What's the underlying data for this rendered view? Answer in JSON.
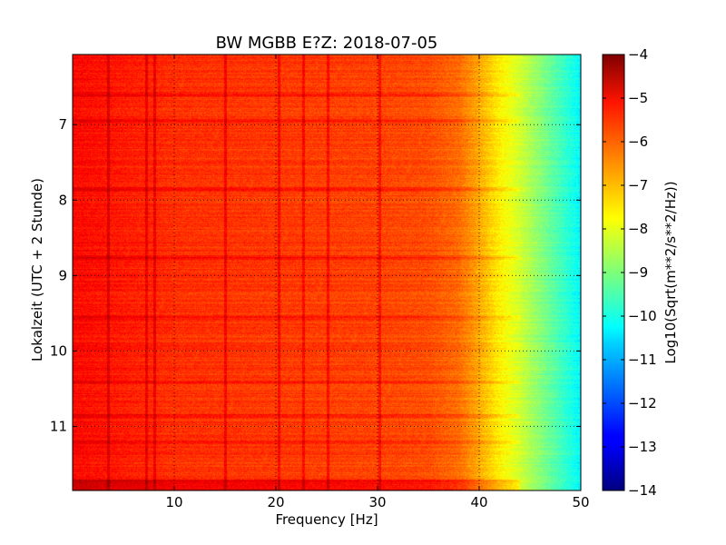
{
  "chart_data": {
    "type": "heatmap",
    "title": "BW MGBB E?Z: 2018-07-05",
    "xlabel": "Frequency [Hz]",
    "ylabel": "Lokalzeit (UTC + 2 Stunde)",
    "colorbar_label": "Log10(Sqrt(m**2/s**2/Hz))",
    "colormap": "jet",
    "xlim": [
      0,
      50
    ],
    "ylim": [
      11.85,
      6.07
    ],
    "y_inverted": true,
    "clim": [
      -14,
      -4
    ],
    "grid": true,
    "x_ticks": [
      10,
      20,
      30,
      40,
      50
    ],
    "x_tick_labels": [
      "10",
      "20",
      "30",
      "40",
      "50"
    ],
    "y_ticks": [
      7,
      8,
      9,
      10,
      11
    ],
    "y_tick_labels": [
      "7",
      "8",
      "9",
      "10",
      "11"
    ],
    "colorbar_ticks": [
      -4,
      -5,
      -6,
      -7,
      -8,
      -9,
      -10,
      -11,
      -12,
      -13,
      -14
    ],
    "colorbar_tick_labels": [
      "−4",
      "−5",
      "−6",
      "−7",
      "−8",
      "−9",
      "−10",
      "−11",
      "−12",
      "−13",
      "−14"
    ],
    "spectral_profile": {
      "frequency_hz": [
        0,
        5,
        10,
        15,
        20,
        25,
        30,
        35,
        38,
        40,
        42,
        44,
        46,
        48,
        50
      ],
      "level": [
        -5.3,
        -5.5,
        -5.7,
        -5.75,
        -5.8,
        -5.85,
        -5.9,
        -6.0,
        -6.3,
        -6.9,
        -7.6,
        -8.2,
        -8.9,
        -9.6,
        -10.3
      ]
    },
    "spectral_lines_hz": [
      3.5,
      7.2,
      8.0,
      15.0,
      20.3,
      22.7,
      25.1,
      30.2
    ],
    "noise_bursts_time": [
      6.6,
      6.95,
      7.85,
      8.75,
      9.55,
      10.4,
      10.85,
      11.2,
      11.8
    ]
  }
}
